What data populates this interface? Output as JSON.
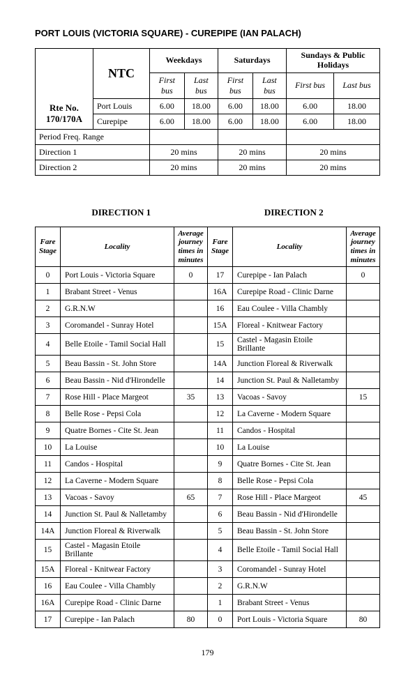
{
  "title": "PORT LOUIS (VICTORIA SQUARE) - CUREPIPE (IAN PALACH)",
  "routeNo": "Rte No. 170/170A",
  "operator": "NTC",
  "dayHeaders": [
    "Weekdays",
    "Saturdays",
    "Sundays & Public Holidays"
  ],
  "subHeaders": [
    "First bus",
    "Last bus"
  ],
  "origins": [
    "Port Louis",
    "Curepipe"
  ],
  "times": {
    "portlouis": [
      "6.00",
      "18.00",
      "6.00",
      "18.00",
      "6.00",
      "18.00"
    ],
    "curepipe": [
      "6.00",
      "18.00",
      "6.00",
      "18.00",
      "6.00",
      "18.00"
    ]
  },
  "periodFreqLabel": "Period Freq. Range",
  "dir1Label": "Direction 1",
  "dir2Label": "Direction 2",
  "freq1": [
    "20 mins",
    "20 mins",
    "20 mins"
  ],
  "freq2": [
    "20 mins",
    "20 mins",
    "20 mins"
  ],
  "dirHead1": "DIRECTION  1",
  "dirHead2": "DIRECTION  2",
  "cols": {
    "fare": "Fare Stage",
    "loc": "Locality",
    "avg": "Average journey times in minutes"
  },
  "d1": [
    {
      "s": "0",
      "l": "Port Louis - Victoria Square",
      "t": "0"
    },
    {
      "s": "1",
      "l": "Brabant Street - Venus",
      "t": ""
    },
    {
      "s": "2",
      "l": "G.R.N.W",
      "t": ""
    },
    {
      "s": "3",
      "l": "Coromandel - Sunray Hotel",
      "t": ""
    },
    {
      "s": "4",
      "l": "Belle Etoile - Tamil Social Hall",
      "t": ""
    },
    {
      "s": "5",
      "l": "Beau Bassin - St. John Store",
      "t": ""
    },
    {
      "s": "6",
      "l": "Beau Bassin - Nid d'Hirondelle",
      "t": ""
    },
    {
      "s": "7",
      "l": "Rose Hill - Place Margeot",
      "t": "35"
    },
    {
      "s": "8",
      "l": "Belle Rose - Pepsi Cola",
      "t": ""
    },
    {
      "s": "9",
      "l": "Quatre Bornes - Cite St. Jean",
      "t": ""
    },
    {
      "s": "10",
      "l": "La Louise",
      "t": ""
    },
    {
      "s": "11",
      "l": "Candos - Hospital",
      "t": ""
    },
    {
      "s": "12",
      "l": "La Caverne - Modern Square",
      "t": ""
    },
    {
      "s": "13",
      "l": "Vacoas - Savoy",
      "t": "65"
    },
    {
      "s": "14",
      "l": "Junction St. Paul & Nalletamby",
      "t": ""
    },
    {
      "s": "14A",
      "l": "Junction Floreal & Riverwalk",
      "t": ""
    },
    {
      "s": "15",
      "l": "Castel - Magasin Etoile Brillante",
      "t": ""
    },
    {
      "s": "15A",
      "l": "Floreal - Knitwear Factory",
      "t": ""
    },
    {
      "s": "16",
      "l": "Eau Coulee - Villa Chambly",
      "t": ""
    },
    {
      "s": "16A",
      "l": "Curepipe Road - Clinic Darne",
      "t": ""
    },
    {
      "s": "17",
      "l": "Curepipe - Ian Palach",
      "t": "80"
    }
  ],
  "d2": [
    {
      "s": "17",
      "l": "Curepipe - Ian Palach",
      "t": "0"
    },
    {
      "s": "16A",
      "l": "Curepipe Road - Clinic Darne",
      "t": ""
    },
    {
      "s": "16",
      "l": "Eau Coulee - Villa Chambly",
      "t": ""
    },
    {
      "s": "15A",
      "l": "Floreal - Knitwear Factory",
      "t": ""
    },
    {
      "s": "15",
      "l": "Castel - Magasin Etoile Brillante",
      "t": ""
    },
    {
      "s": "14A",
      "l": "Junction Floreal & Riverwalk",
      "t": ""
    },
    {
      "s": "14",
      "l": "Junction St. Paul & Nalletamby",
      "t": ""
    },
    {
      "s": "13",
      "l": "Vacoas - Savoy",
      "t": "15"
    },
    {
      "s": "12",
      "l": "La Caverne - Modern Square",
      "t": ""
    },
    {
      "s": "11",
      "l": "Candos - Hospital",
      "t": ""
    },
    {
      "s": "10",
      "l": "La Louise",
      "t": ""
    },
    {
      "s": "9",
      "l": "Quatre Bornes - Cite St. Jean",
      "t": ""
    },
    {
      "s": "8",
      "l": "Belle Rose - Pepsi Cola",
      "t": ""
    },
    {
      "s": "7",
      "l": "Rose Hill - Place Margeot",
      "t": "45"
    },
    {
      "s": "6",
      "l": "Beau Bassin - Nid d'Hirondelle",
      "t": ""
    },
    {
      "s": "5",
      "l": "Beau Bassin - St. John Store",
      "t": ""
    },
    {
      "s": "4",
      "l": "Belle Etoile - Tamil Social Hall",
      "t": ""
    },
    {
      "s": "3",
      "l": "Coromandel - Sunray Hotel",
      "t": ""
    },
    {
      "s": "2",
      "l": "G.R.N.W",
      "t": ""
    },
    {
      "s": "1",
      "l": "Brabant Street - Venus",
      "t": ""
    },
    {
      "s": "0",
      "l": "Port Louis - Victoria Square",
      "t": "80"
    }
  ],
  "pageNumber": "179"
}
